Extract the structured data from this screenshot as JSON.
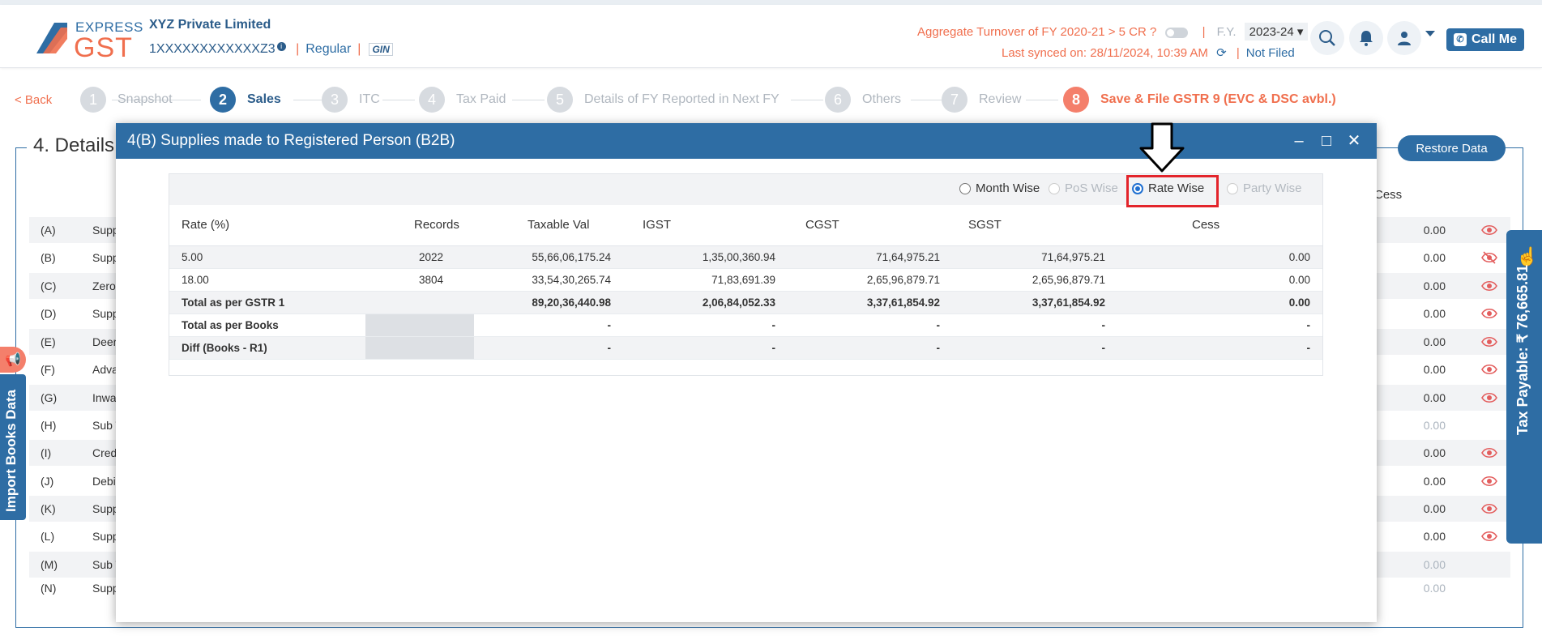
{
  "brand": {
    "line1": "EXPRESS",
    "line2": "GST"
  },
  "header": {
    "company": "XYZ Private Limited",
    "gstin": "1XXXXXXXXXXXXZ3",
    "info": "i",
    "reg_type": "Regular",
    "gin": "GIN",
    "turnover_label": "Aggregate Turnover of FY 2020-21 > 5 CR ?",
    "fy_label": "F.Y.",
    "fy_value": "2023-24",
    "synced": "Last synced on: 28/11/2024, 10:39 AM",
    "filing_status": "Not Filed",
    "call_label": "Call Me",
    "sep": "|"
  },
  "nav": {
    "back": "< Back",
    "steps": [
      {
        "n": "1",
        "label": "Snapshot"
      },
      {
        "n": "2",
        "label": "Sales"
      },
      {
        "n": "3",
        "label": "ITC"
      },
      {
        "n": "4",
        "label": "Tax Paid"
      },
      {
        "n": "5",
        "label": "Details of FY Reported in Next FY"
      },
      {
        "n": "6",
        "label": "Others"
      },
      {
        "n": "7",
        "label": "Review"
      },
      {
        "n": "8",
        "label": "Save & File GSTR 9 (EVC & DSC avbl.)"
      }
    ]
  },
  "section": {
    "title": "4. Details",
    "restore": "Restore Data",
    "cess_header": "Cess"
  },
  "bg_rows": [
    {
      "code": "(A)",
      "label": "Supp",
      "value": "0.00"
    },
    {
      "code": "(B)",
      "label": "Supp",
      "value": "0.00"
    },
    {
      "code": "(C)",
      "label": "Zero",
      "value": "0.00"
    },
    {
      "code": "(D)",
      "label": "Supp",
      "value": "0.00"
    },
    {
      "code": "(E)",
      "label": "Deer",
      "value": "0.00"
    },
    {
      "code": "(F)",
      "label": "Adva",
      "value": "0.00"
    },
    {
      "code": "(G)",
      "label": "Inwa",
      "value": "0.00"
    },
    {
      "code": "(H)",
      "label": "Sub T",
      "value": "0.00"
    },
    {
      "code": "(I)",
      "label": "Cred",
      "value": "0.00"
    },
    {
      "code": "(J)",
      "label": "Debi",
      "value": "0.00"
    },
    {
      "code": "(K)",
      "label": "Supp",
      "value": "0.00"
    },
    {
      "code": "(L)",
      "label": "Supp",
      "value": "0.00"
    },
    {
      "code": "(M)",
      "label": "Sub T",
      "value": "0.00"
    },
    {
      "code": "(N)",
      "label": "Supp",
      "value": "0.00"
    }
  ],
  "side": {
    "import": "Import Books Data",
    "tax_payable": "Tax Payable: ₹ 76,665.81"
  },
  "modal": {
    "title": "4(B) Supplies made to Registered Person (B2B)",
    "controls": {
      "minimize": "–",
      "maximize": "□",
      "close": "✕"
    },
    "radios": {
      "month": "Month Wise",
      "pos": "PoS Wise",
      "rate": "Rate Wise",
      "party": "Party Wise",
      "selected": "Rate Wise"
    },
    "columns": [
      "Rate (%)",
      "Records",
      "Taxable Val",
      "IGST",
      "CGST",
      "SGST",
      "Cess"
    ],
    "rows": [
      [
        "5.00",
        "2022",
        "55,66,06,175.24",
        "1,35,00,360.94",
        "71,64,975.21",
        "71,64,975.21",
        "0.00"
      ],
      [
        "18.00",
        "3804",
        "33,54,30,265.74",
        "71,83,691.39",
        "2,65,96,879.71",
        "2,65,96,879.71",
        "0.00"
      ]
    ],
    "totals": [
      {
        "label": "Total as per GSTR 1",
        "records": "",
        "values": [
          "89,20,36,440.98",
          "2,06,84,052.33",
          "3,37,61,854.92",
          "3,37,61,854.92",
          "0.00"
        ]
      },
      {
        "label": "Total as per Books",
        "records": "",
        "values": [
          "-",
          "-",
          "-",
          "-",
          "-"
        ]
      },
      {
        "label": "Diff (Books - R1)",
        "records": "",
        "values": [
          "-",
          "-",
          "-",
          "-",
          "-"
        ]
      }
    ]
  },
  "colors": {
    "primary": "#2e6da4",
    "accent": "#f06f4e",
    "highlight": "#e3242b"
  }
}
